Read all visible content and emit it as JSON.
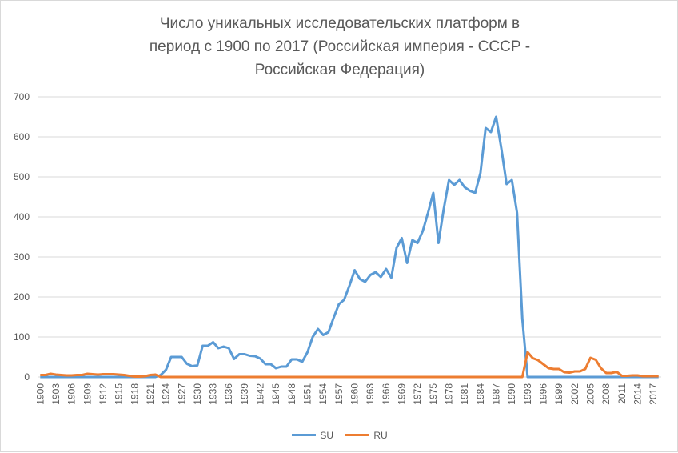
{
  "chart_data": {
    "type": "line",
    "title": "Число уникальных исследовательских платформ в период с 1900 по 2017 (Российская империя - СССР - Российская Федерация)",
    "title_lines": [
      "Число уникальных исследовательских платформ в",
      "период с 1900 по 2017 (Российская империя - СССР -",
      "Российская Федерация)"
    ],
    "x_start": 1900,
    "x_end": 2018,
    "x_tick_step": 3,
    "ylim": [
      0,
      700
    ],
    "y_ticks": [
      0,
      100,
      200,
      300,
      400,
      500,
      600,
      700
    ],
    "grid": true,
    "legend_position": "bottom",
    "series": [
      {
        "name": "SU",
        "color": "#5b9bd5",
        "values": [
          0,
          0,
          0,
          0,
          0,
          0,
          0,
          0,
          0,
          0,
          0,
          0,
          0,
          0,
          0,
          0,
          0,
          0,
          0,
          0,
          0,
          0,
          0,
          5,
          18,
          50,
          50,
          50,
          33,
          27,
          29,
          78,
          78,
          87,
          72,
          76,
          72,
          45,
          57,
          57,
          53,
          52,
          46,
          32,
          32,
          22,
          26,
          26,
          44,
          44,
          38,
          62,
          100,
          120,
          105,
          112,
          148,
          182,
          193,
          228,
          267,
          245,
          238,
          255,
          262,
          250,
          270,
          248,
          323,
          347,
          285,
          342,
          335,
          365,
          410,
          460,
          335,
          420,
          492,
          480,
          492,
          474,
          465,
          460,
          510,
          622,
          612,
          650,
          570,
          482,
          492,
          410,
          145,
          0,
          0,
          0,
          0,
          0,
          0,
          0,
          0,
          0,
          0,
          0,
          0,
          0,
          0,
          0,
          0,
          0,
          0,
          0,
          0,
          0,
          0,
          0,
          0,
          0,
          0
        ]
      },
      {
        "name": "RU",
        "color": "#ed7d31",
        "values": [
          5,
          5,
          8,
          6,
          5,
          4,
          4,
          5,
          5,
          8,
          7,
          6,
          7,
          7,
          7,
          6,
          5,
          3,
          1,
          1,
          2,
          5,
          6,
          0,
          0,
          0,
          0,
          0,
          0,
          0,
          0,
          0,
          0,
          0,
          0,
          0,
          0,
          0,
          0,
          0,
          0,
          0,
          0,
          0,
          0,
          0,
          0,
          0,
          0,
          0,
          0,
          0,
          0,
          0,
          0,
          0,
          0,
          0,
          0,
          0,
          0,
          0,
          0,
          0,
          0,
          0,
          0,
          0,
          0,
          0,
          0,
          0,
          0,
          0,
          0,
          0,
          0,
          0,
          0,
          0,
          0,
          0,
          0,
          0,
          0,
          0,
          0,
          0,
          0,
          0,
          0,
          0,
          0,
          62,
          47,
          42,
          32,
          22,
          20,
          20,
          12,
          11,
          14,
          14,
          20,
          48,
          43,
          22,
          10,
          10,
          13,
          3,
          3,
          4,
          4,
          2,
          2,
          2,
          2
        ]
      }
    ]
  }
}
